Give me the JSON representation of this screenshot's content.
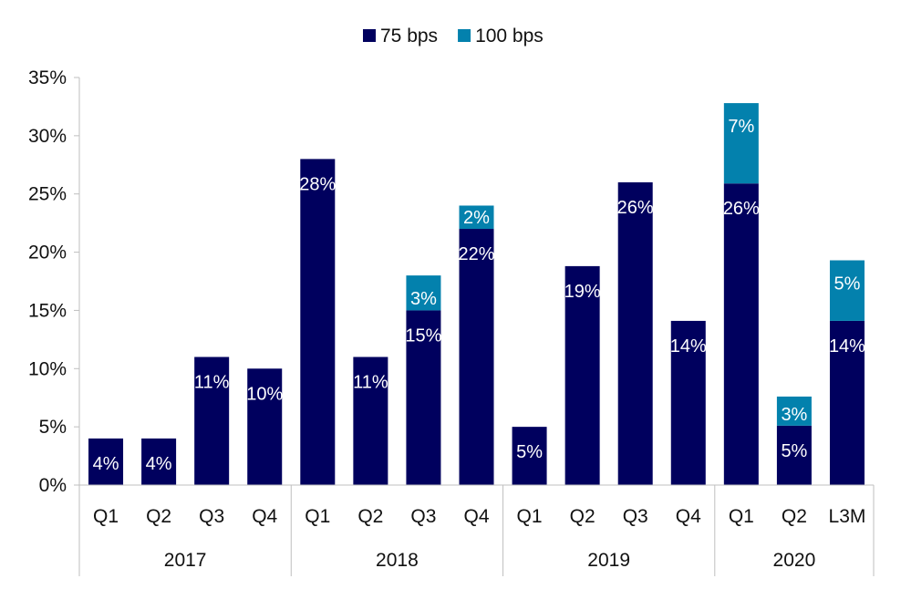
{
  "chart_data": {
    "type": "bar",
    "stacked": true,
    "title": "",
    "xlabel": "",
    "ylabel": "",
    "ylim": [
      0,
      35
    ],
    "yticks": [
      0,
      5,
      10,
      15,
      20,
      25,
      30,
      35
    ],
    "ytick_labels": [
      "0%",
      "5%",
      "10%",
      "15%",
      "20%",
      "25%",
      "30%",
      "35%"
    ],
    "grid": false,
    "legend_position": "top-center",
    "categories": [
      "Q1",
      "Q2",
      "Q3",
      "Q4",
      "Q1",
      "Q2",
      "Q3",
      "Q4",
      "Q1",
      "Q2",
      "Q3",
      "Q4",
      "Q1",
      "Q2",
      "L3M"
    ],
    "groups": [
      {
        "label": "2017",
        "start": 0,
        "end": 3
      },
      {
        "label": "2018",
        "start": 4,
        "end": 7
      },
      {
        "label": "2019",
        "start": 8,
        "end": 11
      },
      {
        "label": "2020",
        "start": 12,
        "end": 14
      }
    ],
    "series": [
      {
        "name": "75 bps",
        "color": "#00005e",
        "values": [
          4,
          4,
          11,
          10,
          28,
          11,
          15,
          22,
          5,
          18.8,
          26,
          14.1,
          25.9,
          5.1,
          14.1
        ],
        "labels": [
          "4%",
          "4%",
          "11%",
          "10%",
          "28%",
          "11%",
          "15%",
          "22%",
          "5%",
          "19%",
          "26%",
          "14%",
          "26%",
          "5%",
          "14%"
        ]
      },
      {
        "name": "100 bps",
        "color": "#0381ad",
        "values": [
          0,
          0,
          0,
          0,
          0,
          0,
          3,
          2,
          0,
          0,
          0,
          0,
          6.9,
          2.5,
          5.2
        ],
        "labels": [
          "",
          "",
          "",
          "",
          "",
          "",
          "3%",
          "2%",
          "",
          "",
          "",
          "",
          "7%",
          "3%",
          "5%"
        ]
      }
    ]
  }
}
